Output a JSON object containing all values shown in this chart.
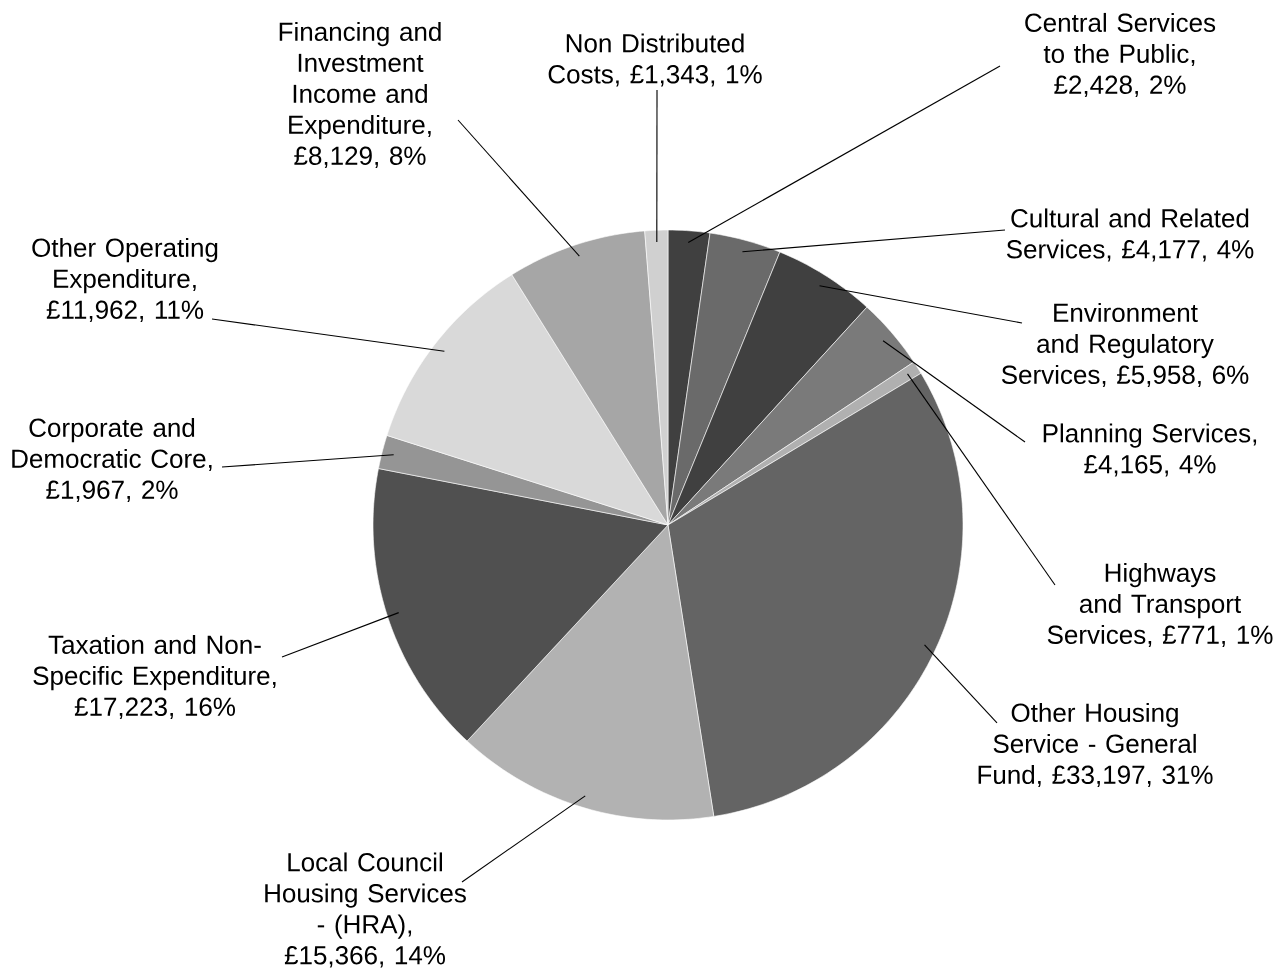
{
  "chart_data": {
    "type": "pie",
    "categories": [
      "Central Services to the Public",
      "Cultural and Related Services",
      "Environment and Regulatory Services",
      "Planning Services",
      "Highways and Transport Services",
      "Other Housing Service - General Fund",
      "Local Council Housing Services - (HRA)",
      "Taxation and Non-Specific Expenditure",
      "Corporate and Democratic Core",
      "Other Operating Expenditure",
      "Financing and Investment Income and Expenditure",
      "Non Distributed Costs"
    ],
    "values": [
      2428,
      4177,
      5958,
      4165,
      771,
      33197,
      15366,
      17223,
      1967,
      11962,
      8129,
      1343
    ],
    "value_labels": [
      ", £2,428, 2%",
      ", £4,177, 4%",
      ", £5,958, 6%",
      ", £4,165, 4%",
      ", £771, 1%",
      ", £33,197, 31%",
      ", £15,366, 14%",
      ", £17,223, 16%",
      ", £1,967, 2%",
      ", £11,962, 11%",
      ", £8,129, 8%",
      ", £1,343, 1%"
    ],
    "colors": [
      "#404040",
      "#6a6a6a",
      "#404040",
      "#7a7a7a",
      "#b0b0b0",
      "#646464",
      "#b2b2b2",
      "#505050",
      "#959595",
      "#d9d9d9",
      "#a6a6a6",
      "#d0d0d0"
    ]
  }
}
